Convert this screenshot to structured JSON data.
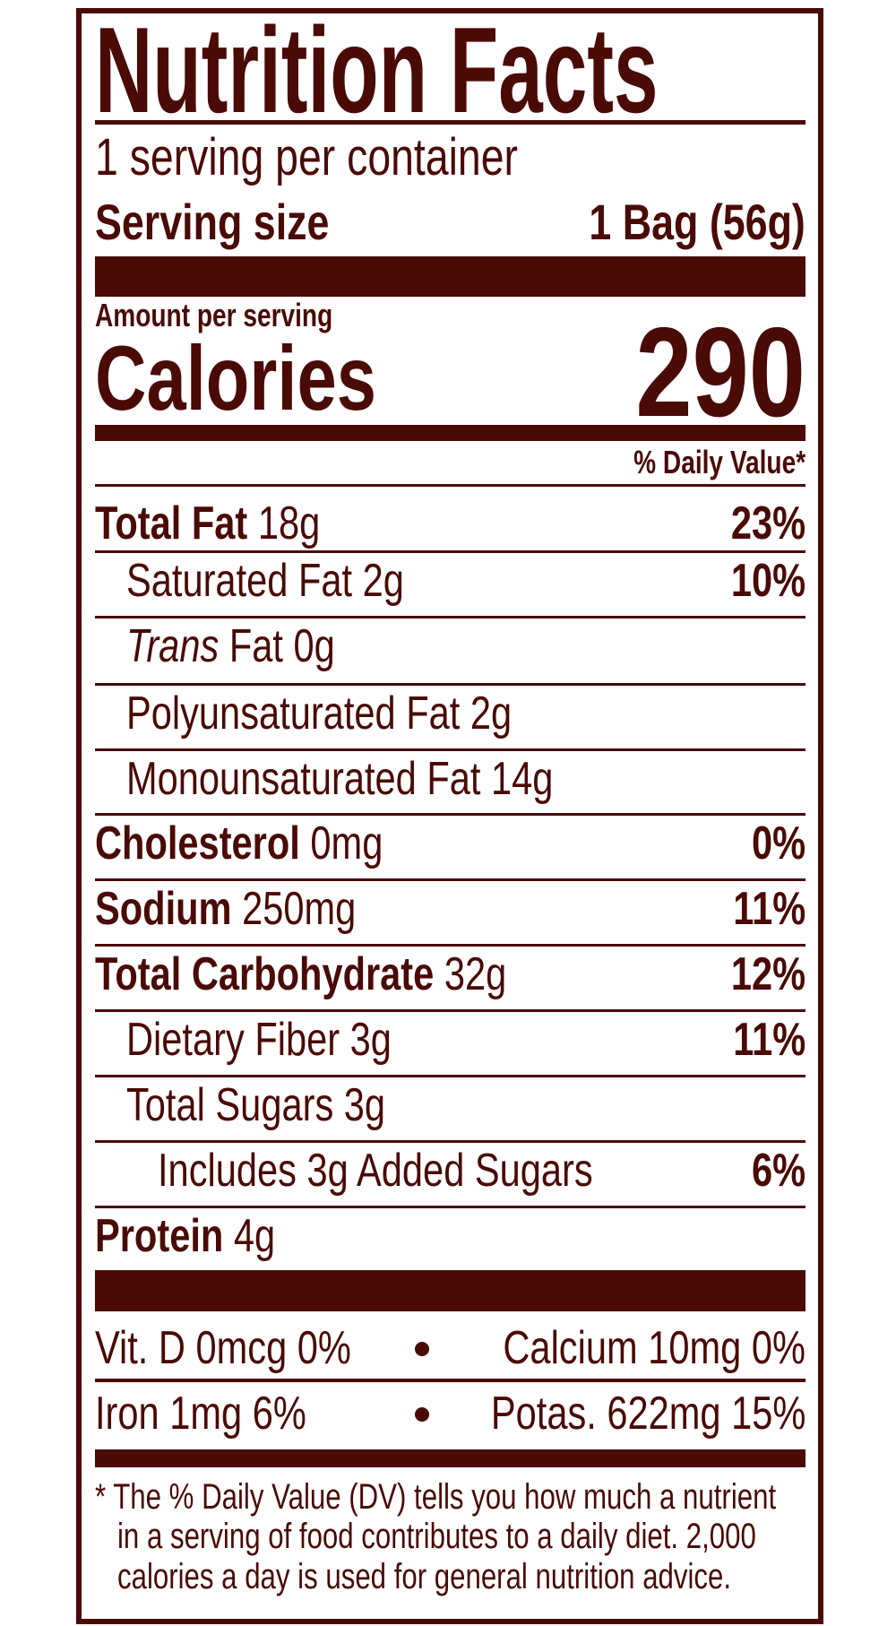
{
  "title": "Nutrition Facts",
  "servings_per_container": "1 serving per container",
  "serving_size_label": "Serving size",
  "serving_size_value": "1 Bag (56g)",
  "amount_per_serving": "Amount per serving",
  "calories_label": "Calories",
  "calories_value": "290",
  "daily_value_header": "% Daily Value*",
  "nutrients": [
    {
      "name": "Total Fat",
      "amount": "18g",
      "dv": "23%"
    },
    {
      "name": "Saturated Fat",
      "amount": "2g",
      "dv": "10%"
    },
    {
      "name_italic": "Trans",
      "name": "Fat",
      "amount": "0g",
      "dv": ""
    },
    {
      "name": "Polyunsaturated Fat",
      "amount": "2g",
      "dv": ""
    },
    {
      "name": "Monounsaturated Fat",
      "amount": "14g",
      "dv": ""
    },
    {
      "name": "Cholesterol",
      "amount": "0mg",
      "dv": "0%"
    },
    {
      "name": "Sodium",
      "amount": "250mg",
      "dv": "11%"
    },
    {
      "name": "Total Carbohydrate",
      "amount": "32g",
      "dv": "12%"
    },
    {
      "name": "Dietary Fiber",
      "amount": "3g",
      "dv": "11%"
    },
    {
      "name": "Total Sugars",
      "amount": "3g",
      "dv": ""
    },
    {
      "name": "Includes 3g Added Sugars",
      "amount": "",
      "dv": "6%"
    },
    {
      "name": "Protein",
      "amount": "4g",
      "dv": ""
    }
  ],
  "micronutrients": [
    "Vit. D 0mcg 0%",
    "Calcium 10mg 0%",
    "Iron 1mg 6%",
    "Potas. 622mg 15%"
  ],
  "footnote": [
    "* The % Daily Value (DV) tells you how much a nutrient",
    "in a serving of food contributes to a daily diet. 2,000",
    "calories a day is used for general nutrition advice."
  ],
  "colors": {
    "ink": "#4a0a06",
    "background": "#ffffff"
  }
}
